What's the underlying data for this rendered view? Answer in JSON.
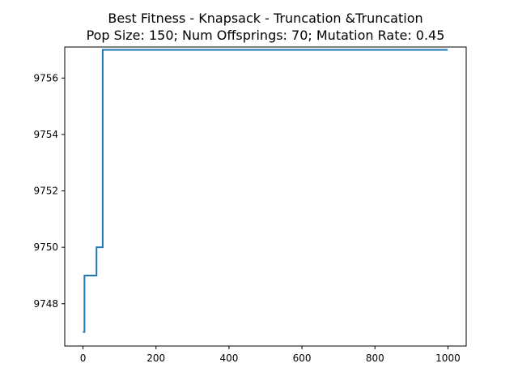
{
  "chart_data": {
    "type": "line",
    "title_line1": "Best Fitness - Knapsack - Truncation &Truncation",
    "title_line2": "Pop Size: 150; Num Offsprings: 70; Mutation Rate: 0.45",
    "xlabel": "",
    "ylabel": "",
    "xlim": [
      -50,
      1050
    ],
    "ylim": [
      9746.5,
      9757.1
    ],
    "x_ticks": [
      0,
      200,
      400,
      600,
      800,
      1000
    ],
    "x_tick_labels": [
      "0",
      "200",
      "400",
      "600",
      "800",
      "1000"
    ],
    "y_ticks": [
      9748,
      9750,
      9752,
      9754,
      9756
    ],
    "y_tick_labels": [
      "9748",
      "9750",
      "9752",
      "9754",
      "9756"
    ],
    "grid": false,
    "line_color": "#1f77b4",
    "series": [
      {
        "x": [
          0,
          4,
          4,
          37,
          37,
          54,
          54,
          999
        ],
        "y": [
          9747,
          9747,
          9749,
          9749,
          9750,
          9750,
          9757,
          9757
        ]
      }
    ]
  }
}
